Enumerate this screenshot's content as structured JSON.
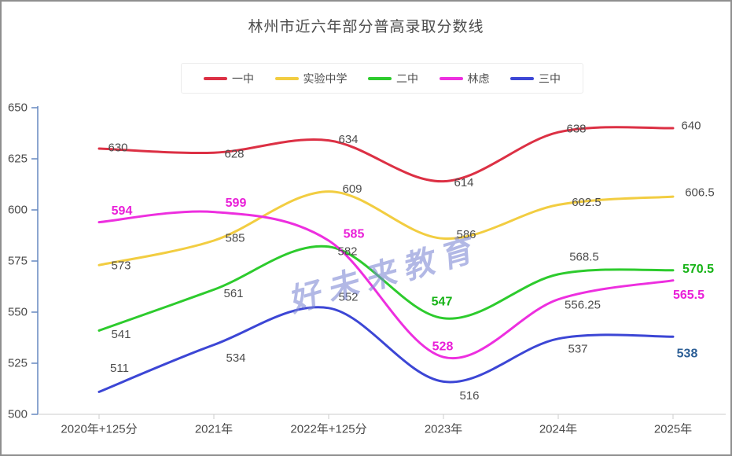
{
  "page": {
    "title": "林州市近六年部分普高录取分数线",
    "watermark": "好未来教育"
  },
  "chart_data": {
    "type": "line",
    "title": "林州市近六年部分普高录取分数线",
    "categories": [
      "2020年+125分",
      "2021年",
      "2022年+125分",
      "2023年",
      "2024年",
      "2025年"
    ],
    "series": [
      {
        "name": "一中",
        "color": "#dc3044",
        "values": [
          630,
          628,
          634,
          614,
          638,
          640
        ]
      },
      {
        "name": "实验中学",
        "color": "#f2cd41",
        "values": [
          573,
          585,
          609,
          586,
          602.5,
          606.5
        ]
      },
      {
        "name": "二中",
        "color": "#2dcb2d",
        "values": [
          541,
          561,
          582,
          547,
          568.5,
          570.5
        ]
      },
      {
        "name": "林虑",
        "color": "#ed2fdf",
        "values": [
          594,
          599,
          585,
          528,
          556.25,
          565.5
        ]
      },
      {
        "name": "三中",
        "color": "#3c46d5",
        "values": [
          511,
          534,
          552,
          516,
          537,
          538
        ]
      }
    ],
    "ylim": [
      500,
      650
    ],
    "yticks": [
      500,
      525,
      550,
      575,
      600,
      625,
      650
    ],
    "grid": false,
    "smooth": true,
    "legend_position": "top",
    "xlabel": "",
    "ylabel": ""
  },
  "colors": {
    "y_axis": "#6688c0",
    "x_axis": "#cccccc",
    "tick_label": "#4a4a4a",
    "data_label": "#4d4d4d",
    "bold_green": "#17b317",
    "bold_magenta": "#e91fd8",
    "bold_blue": "#2d5f96",
    "watermark": "#7c86d4"
  }
}
